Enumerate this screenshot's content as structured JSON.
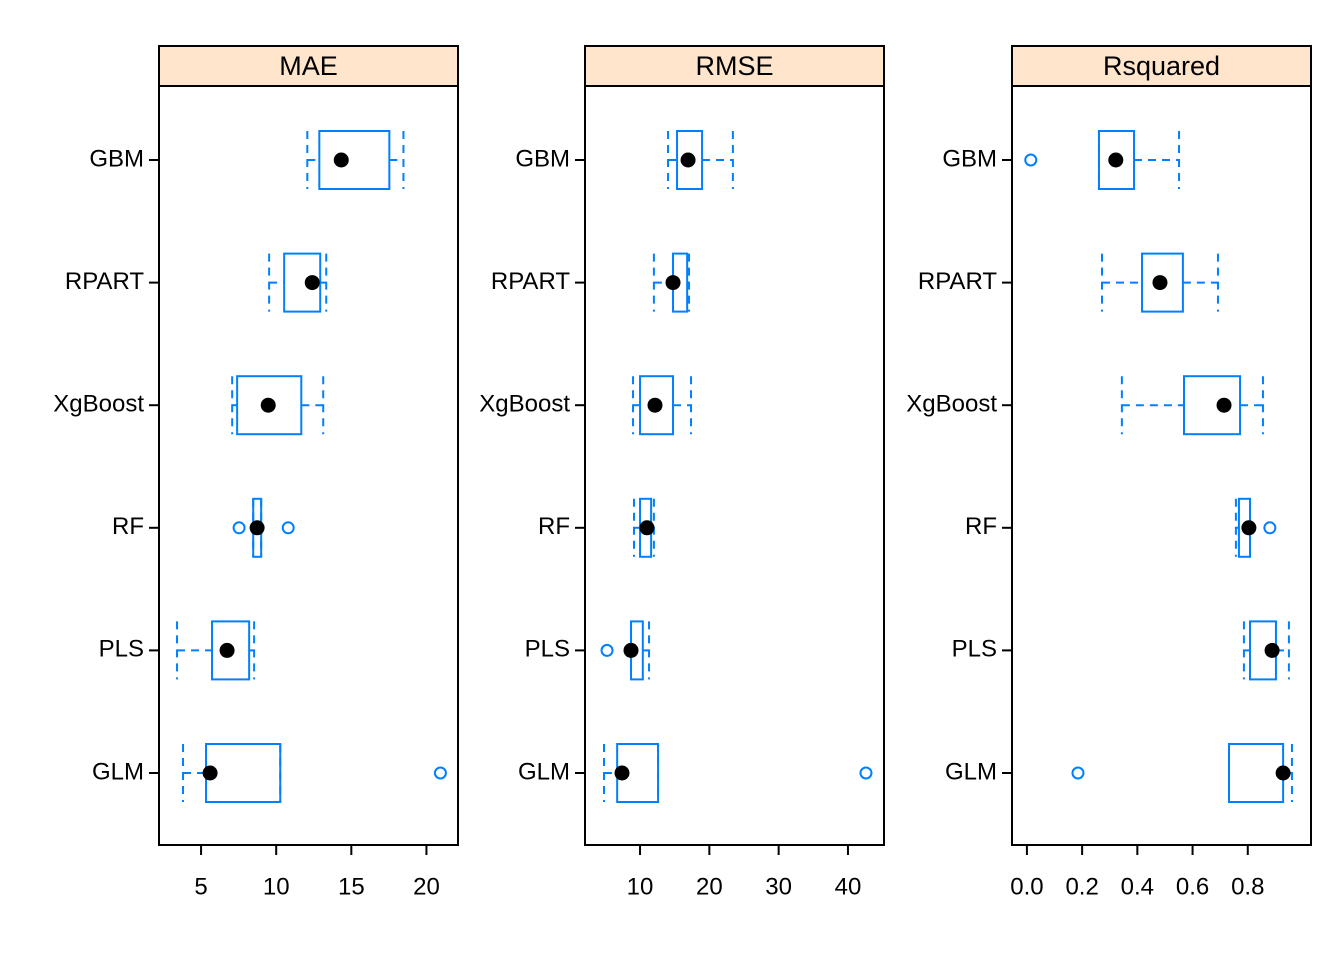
{
  "chart_data": [
    {
      "type": "box",
      "title": "MAE",
      "color": "#0080ff",
      "strip_color": "#ffe5cc",
      "categories": [
        "GLM",
        "PLS",
        "RF",
        "XgBoost",
        "RPART",
        "GBM"
      ],
      "boxes": [
        {
          "low": 3.8,
          "q1": 5.33,
          "median": 5.6,
          "q3": 10.27,
          "high": 10.27,
          "outliers": [
            20.93
          ]
        },
        {
          "low": 3.4,
          "q1": 5.73,
          "median": 6.73,
          "q3": 8.2,
          "high": 8.53,
          "outliers": []
        },
        {
          "low": 8.47,
          "q1": 8.47,
          "median": 8.73,
          "q3": 9.0,
          "high": 9.0,
          "outliers": [
            7.53,
            10.8
          ]
        },
        {
          "low": 7.07,
          "q1": 7.4,
          "median": 9.47,
          "q3": 11.67,
          "high": 13.13,
          "outliers": []
        },
        {
          "low": 9.53,
          "q1": 10.53,
          "median": 12.4,
          "q3": 12.93,
          "high": 13.33,
          "outliers": []
        },
        {
          "low": 12.07,
          "q1": 12.87,
          "median": 14.33,
          "q3": 17.53,
          "high": 18.47,
          "outliers": []
        }
      ],
      "xlim": [
        2.2,
        22.1
      ],
      "xticks": [
        5,
        10,
        15,
        20
      ]
    },
    {
      "type": "box",
      "title": "RMSE",
      "color": "#0080ff",
      "strip_color": "#ffe5cc",
      "categories": [
        "GLM",
        "PLS",
        "RF",
        "XgBoost",
        "RPART",
        "GBM"
      ],
      "boxes": [
        {
          "low": 4.8,
          "q1": 6.7,
          "median": 7.4,
          "q3": 12.6,
          "high": 12.6,
          "outliers": [
            42.6
          ]
        },
        {
          "low": 8.7,
          "q1": 8.7,
          "median": 8.7,
          "q3": 10.4,
          "high": 11.3,
          "outliers": [
            5.24
          ]
        },
        {
          "low": 9.13,
          "q1": 10,
          "median": 11,
          "q3": 11.6,
          "high": 12,
          "outliers": []
        },
        {
          "low": 8.99,
          "q1": 10,
          "median": 12.16,
          "q3": 14.76,
          "high": 17.36,
          "outliers": []
        },
        {
          "low": 12,
          "q1": 14.76,
          "median": 14.76,
          "q3": 16.8,
          "high": 17.07,
          "outliers": []
        },
        {
          "low": 14.04,
          "q1": 15.34,
          "median": 16.93,
          "q3": 18.95,
          "high": 23.4,
          "outliers": []
        }
      ],
      "xlim": [
        2.06,
        45.2
      ],
      "xticks": [
        10,
        20,
        30,
        40
      ]
    },
    {
      "type": "box",
      "title": "Rsquared",
      "color": "#0080ff",
      "strip_color": "#ffe5cc",
      "categories": [
        "GLM",
        "PLS",
        "RF",
        "XgBoost",
        "RPART",
        "GBM"
      ],
      "boxes": [
        {
          "low": 0.732,
          "q1": 0.732,
          "median": 0.928,
          "q3": 0.928,
          "high": 0.96,
          "outliers": [
            0.185
          ]
        },
        {
          "low": 0.786,
          "q1": 0.808,
          "median": 0.888,
          "q3": 0.902,
          "high": 0.949,
          "outliers": []
        },
        {
          "low": 0.757,
          "q1": 0.768,
          "median": 0.804,
          "q3": 0.808,
          "high": 0.808,
          "outliers": [
            0.88
          ]
        },
        {
          "low": 0.344,
          "q1": 0.569,
          "median": 0.714,
          "q3": 0.772,
          "high": 0.855,
          "outliers": []
        },
        {
          "low": 0.272,
          "q1": 0.417,
          "median": 0.482,
          "q3": 0.565,
          "high": 0.692,
          "outliers": []
        },
        {
          "low": 0.261,
          "q1": 0.261,
          "median": 0.322,
          "q3": 0.388,
          "high": 0.551,
          "outliers": [
            0.014
          ]
        }
      ],
      "xlim": [
        -0.054,
        1.029
      ],
      "xticks": [
        {
          "value": 0,
          "label": "0.0"
        },
        0.2,
        0.4,
        0.6,
        0.8
      ]
    }
  ]
}
